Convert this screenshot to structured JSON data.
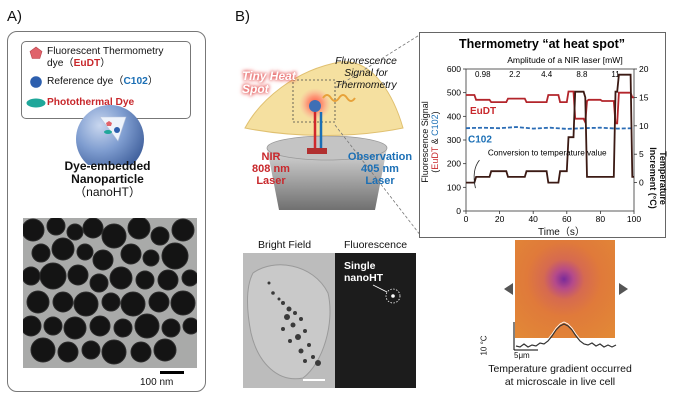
{
  "panel_a": {
    "letter": "A)",
    "legend": {
      "line1": "Fluorescent Thermometry",
      "line2_prefix": "dye（",
      "line2_highlight": "EuDT",
      "line2_suffix": "）",
      "ref_prefix": "Reference dye（",
      "ref_highlight": "C102",
      "ref_suffix": "）",
      "photothermal": "Photothermal Dye"
    },
    "nanoparticle_label": [
      "Dye-embedded",
      "Nanoparticle",
      "（nanoHT）"
    ],
    "scalebar_label": "100 nm",
    "colors": {
      "pentagon": "#e0636b",
      "blue_dot": "#2d5fae",
      "teal_oval": "#1fa79a",
      "sphere": "#6f8fc8"
    }
  },
  "panel_b": {
    "letter": "B)",
    "tiny_heat_spot": [
      "Tiny Heat",
      "Spot"
    ],
    "fluor_signal": [
      "Fluorescence",
      "Signal for",
      "Thermometry"
    ],
    "nir": [
      "NIR",
      "808 nm",
      "Laser"
    ],
    "obs": [
      "Observation",
      "405 nm",
      "Laser"
    ],
    "bright_field": "Bright Field",
    "fluorescence": "Fluorescence",
    "single_nanoht": [
      "Single",
      "nanoHT"
    ],
    "caption": [
      "Temperature gradient occurred",
      "at microscale in live cell"
    ],
    "temp_scale": "10 °C",
    "dist_scale": "5μm",
    "colors": {
      "red": "#c8282c",
      "blue": "#1b6fb5",
      "cell": "#f5e0a0"
    }
  },
  "chart_data": {
    "type": "line",
    "title": "Thermometry “at heat spot”",
    "subtitle": "Amplitude  of a NIR laser [mW]",
    "amplitudes": [
      "0.98",
      "2.2",
      "4.4",
      "8.8",
      "11"
    ],
    "xlabel": "Time (s)",
    "xlabel_display": "Time（s）",
    "ylabel_left": [
      "Fluorescence  Signal",
      "(EuDT & C102)"
    ],
    "ylabel_left_parts": {
      "line1": "Fluorescence  Signal",
      "open": "(",
      "eudt": "EuDT",
      "amp": " & ",
      "c102": "C102",
      "close": ")"
    },
    "ylabel_right": [
      "Temperature",
      "Increment (°C)"
    ],
    "xlim": [
      0,
      100
    ],
    "ylim_left": [
      0,
      600
    ],
    "ylim_right": [
      -5,
      20
    ],
    "x_ticks": [
      0,
      20,
      40,
      60,
      80,
      100
    ],
    "y_left_ticks": [
      0,
      100,
      200,
      300,
      400,
      500,
      600
    ],
    "y_right_ticks": [
      0,
      5,
      10,
      15,
      20
    ],
    "annotation": "Conversion to temperature value",
    "series": [
      {
        "name": "EuDT",
        "color": "#b3252b",
        "axis": "left",
        "x": [
          0,
          5,
          6,
          14,
          15,
          24,
          25,
          35,
          36,
          48,
          49,
          55,
          56,
          60,
          61,
          64,
          65,
          70,
          71,
          72,
          73,
          80,
          81,
          88,
          89,
          90,
          91,
          98,
          99,
          100
        ],
        "y": [
          490,
          490,
          470,
          470,
          460,
          460,
          475,
          475,
          460,
          460,
          490,
          490,
          460,
          460,
          505,
          505,
          390,
          390,
          375,
          465,
          470,
          470,
          465,
          465,
          370,
          370,
          500,
          500,
          480,
          480
        ]
      },
      {
        "name": "C102",
        "color": "#2a6cb5",
        "axis": "left",
        "dashed": true,
        "x": [
          0,
          10,
          20,
          30,
          40,
          50,
          60,
          70,
          80,
          90,
          100
        ],
        "y": [
          350,
          352,
          350,
          355,
          348,
          352,
          347,
          350,
          352,
          348,
          350
        ]
      },
      {
        "name": "Temperature",
        "color": "#3b1a14",
        "axis": "right",
        "x": [
          0,
          5,
          6,
          14,
          15,
          24,
          25,
          35,
          36,
          48,
          49,
          55,
          56,
          60,
          61,
          64,
          65,
          70,
          71,
          72,
          73,
          80,
          81,
          88,
          89,
          90,
          91,
          98,
          99,
          100
        ],
        "y": [
          0,
          0,
          1,
          1,
          2,
          2,
          1,
          1,
          2,
          2,
          0,
          0,
          2,
          2,
          8,
          8,
          16,
          16,
          15,
          1,
          1,
          1,
          1,
          1,
          16,
          16,
          19,
          19,
          1,
          1
        ]
      }
    ]
  }
}
